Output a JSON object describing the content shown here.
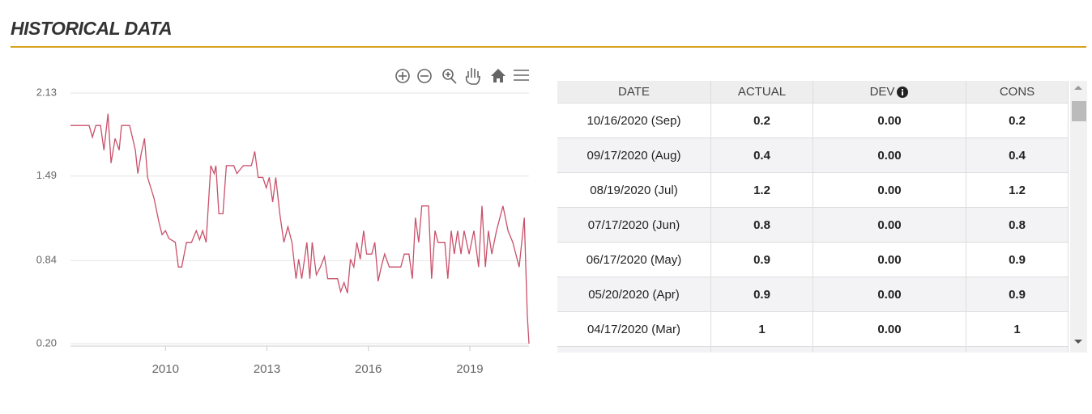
{
  "header": {
    "title": "HISTORICAL DATA"
  },
  "chart_data": {
    "type": "line",
    "color": "#c9506a",
    "xlim": [
      2007.19,
      2020.75
    ],
    "xticks": [
      2010,
      2013,
      2016,
      2019
    ],
    "ylim": [
      0.2,
      2.13
    ],
    "yticks": [
      2.13,
      1.49,
      0.84,
      {
        "value": 0.2,
        "label": "0.20"
      }
    ],
    "grid": true,
    "x": [
      2007.19,
      2007.74,
      2007.84,
      2007.94,
      2008.08,
      2008.18,
      2008.3,
      2008.39,
      2008.51,
      2008.63,
      2008.7,
      2008.94,
      2009.02,
      2009.11,
      2009.18,
      2009.28,
      2009.38,
      2009.47,
      2009.66,
      2009.81,
      2009.9,
      2010,
      2010.1,
      2010.29,
      2010.38,
      2010.48,
      2010.62,
      2010.77,
      2010.91,
      2011.01,
      2011.1,
      2011.2,
      2011.34,
      2011.44,
      2011.49,
      2011.58,
      2011.7,
      2011.8,
      2012.02,
      2012.11,
      2012.3,
      2012.54,
      2012.64,
      2012.74,
      2012.88,
      2012.98,
      2013.07,
      2013.17,
      2013.26,
      2013.38,
      2013.5,
      2013.62,
      2013.74,
      2013.86,
      2013.94,
      2014.03,
      2014.18,
      2014.27,
      2014.34,
      2014.46,
      2014.58,
      2014.7,
      2014.8,
      2014.94,
      2015.09,
      2015.18,
      2015.28,
      2015.38,
      2015.47,
      2015.57,
      2015.66,
      2015.76,
      2015.86,
      2015.95,
      2016.1,
      2016.19,
      2016.29,
      2016.38,
      2016.48,
      2016.62,
      2016.96,
      2017.06,
      2017.2,
      2017.3,
      2017.39,
      2017.49,
      2017.58,
      2017.78,
      2017.87,
      2017.97,
      2018.06,
      2018.26,
      2018.35,
      2018.45,
      2018.54,
      2018.64,
      2018.74,
      2018.83,
      2018.98,
      2019.12,
      2019.26,
      2019.36,
      2019.46,
      2019.55,
      2019.65,
      2019.79,
      2019.98,
      2020.13,
      2020.27,
      2020.46,
      2020.61,
      2020.7,
      2020.75
    ],
    "values": [
      1.88,
      1.88,
      1.79,
      1.88,
      1.88,
      1.69,
      1.97,
      1.59,
      1.78,
      1.69,
      1.88,
      1.88,
      1.79,
      1.69,
      1.51,
      1.66,
      1.78,
      1.48,
      1.32,
      1.13,
      1.04,
      1.07,
      1.01,
      0.98,
      0.79,
      0.79,
      0.98,
      0.98,
      1.07,
      1.0,
      1.07,
      0.98,
      1.57,
      1.51,
      1.57,
      1.2,
      1.2,
      1.57,
      1.57,
      1.51,
      1.57,
      1.57,
      1.68,
      1.48,
      1.48,
      1.4,
      1.48,
      1.29,
      1.48,
      1.2,
      0.98,
      1.1,
      0.98,
      0.7,
      0.85,
      0.7,
      0.98,
      0.7,
      0.98,
      0.73,
      0.79,
      0.87,
      0.7,
      0.7,
      0.7,
      0.6,
      0.67,
      0.59,
      0.85,
      0.79,
      0.98,
      0.85,
      1.07,
      0.89,
      0.89,
      0.98,
      0.68,
      0.79,
      0.89,
      0.79,
      0.79,
      0.89,
      0.89,
      0.7,
      1.17,
      0.98,
      1.26,
      1.26,
      0.7,
      1.07,
      0.98,
      0.98,
      0.7,
      1.07,
      0.89,
      1.07,
      0.89,
      1.07,
      0.89,
      1.07,
      0.79,
      1.26,
      0.79,
      1.07,
      0.89,
      1.07,
      1.26,
      1.07,
      0.98,
      0.79,
      1.17,
      0.42,
      0.2
    ]
  },
  "table": {
    "columns": [
      "DATE",
      "ACTUAL",
      "DEV",
      "CONS"
    ],
    "rows": [
      [
        "10/16/2020 (Sep)",
        "0.2",
        "0.00",
        "0.2"
      ],
      [
        "09/17/2020 (Aug)",
        "0.4",
        "0.00",
        "0.4"
      ],
      [
        "08/19/2020 (Jul)",
        "1.2",
        "0.00",
        "1.2"
      ],
      [
        "07/17/2020 (Jun)",
        "0.8",
        "0.00",
        "0.8"
      ],
      [
        "06/17/2020 (May)",
        "0.9",
        "0.00",
        "0.9"
      ],
      [
        "05/20/2020 (Apr)",
        "0.9",
        "0.00",
        "0.9"
      ],
      [
        "04/17/2020 (Mar)",
        "1",
        "0.00",
        "1"
      ]
    ]
  }
}
